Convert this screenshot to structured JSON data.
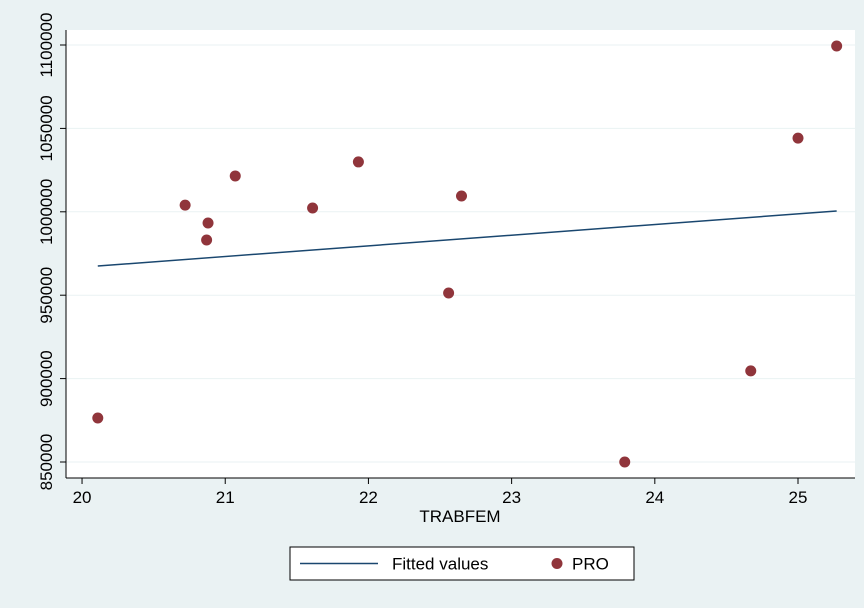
{
  "chart_data": {
    "type": "scatter",
    "x_label": "TRABFEM",
    "xlim": [
      19.888,
      25.398
    ],
    "xticks": [
      20,
      21,
      22,
      23,
      24,
      25
    ],
    "ylim": [
      840400,
      1109000
    ],
    "yticks": [
      850000,
      900000,
      950000,
      1000000,
      1050000,
      1100000
    ],
    "grid": true,
    "legend": "bottom",
    "series": [
      {
        "name": "Fitted values",
        "kind": "line",
        "color": "#1a476f",
        "x": [
          20.11,
          25.27
        ],
        "values": [
          967500,
          1000500
        ]
      },
      {
        "name": "PRO",
        "kind": "points",
        "color": "#90353b",
        "x": [
          20.11,
          20.72,
          20.88,
          20.87,
          21.07,
          21.61,
          21.93,
          22.56,
          22.65,
          23.79,
          24.67,
          25.0,
          25.27
        ],
        "values": [
          876400,
          1004000,
          993300,
          983100,
          1021500,
          1002300,
          1029900,
          951300,
          1009500,
          850000,
          904600,
          1044200,
          1099400
        ]
      }
    ]
  }
}
